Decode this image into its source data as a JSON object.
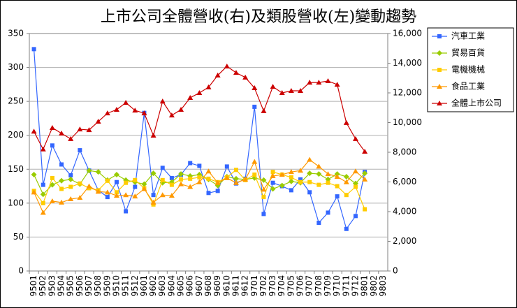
{
  "chart_data": {
    "type": "line",
    "title": "上市公司全體營收(右)及類股營收(左)變動趨勢",
    "categories": [
      "9501",
      "9502",
      "9503",
      "9504",
      "9505",
      "9506",
      "9507",
      "9508",
      "9509",
      "9510",
      "9511",
      "9512",
      "9601",
      "9602",
      "9603",
      "9604",
      "9605",
      "9606",
      "9607",
      "9608",
      "9609",
      "9610",
      "9611",
      "9612",
      "9701",
      "9702",
      "9703",
      "9704",
      "9705",
      "9706",
      "9707",
      "9708",
      "9709",
      "9710",
      "9711",
      "9712",
      "9801",
      "9802",
      "9803"
    ],
    "series": [
      {
        "name": "汽車工業",
        "color": "#3366ff",
        "marker": "square",
        "values": [
          327,
          127,
          185,
          157,
          141,
          178,
          148,
          119,
          109,
          131,
          88,
          124,
          233,
          112,
          152,
          137,
          142,
          159,
          155,
          115,
          118,
          154,
          129,
          136,
          242,
          84,
          130,
          125,
          119,
          135,
          116,
          71,
          86,
          110,
          62,
          81,
          146,
          null,
          null
        ]
      },
      {
        "name": "貿易百貨",
        "color": "#99cc00",
        "marker": "diamond",
        "values": [
          142,
          113,
          127,
          133,
          135,
          128,
          148,
          146,
          134,
          142,
          134,
          131,
          128,
          144,
          130,
          131,
          143,
          140,
          142,
          135,
          126,
          139,
          136,
          135,
          137,
          134,
          121,
          126,
          132,
          130,
          144,
          143,
          135,
          143,
          139,
          129,
          144,
          null,
          null
        ]
      },
      {
        "name": "電機機械",
        "color": "#ffcc00",
        "marker": "square",
        "values": [
          118,
          100,
          137,
          121,
          124,
          129,
          122,
          119,
          133,
          116,
          130,
          134,
          122,
          98,
          134,
          127,
          135,
          136,
          138,
          136,
          131,
          138,
          149,
          134,
          142,
          109,
          146,
          142,
          138,
          131,
          131,
          127,
          130,
          125,
          112,
          124,
          91,
          null,
          null
        ]
      },
      {
        "name": "食品工業",
        "color": "#ff9900",
        "marker": "triangle",
        "values": [
          116,
          86,
          103,
          101,
          106,
          108,
          125,
          117,
          116,
          111,
          112,
          110,
          121,
          101,
          112,
          111,
          128,
          124,
          131,
          147,
          130,
          137,
          130,
          135,
          161,
          120,
          140,
          142,
          146,
          148,
          164,
          154,
          143,
          139,
          131,
          147,
          135,
          null,
          null
        ]
      },
      {
        "name": "全體上市公司",
        "color": "#cc0000",
        "marker": "triangle",
        "axis": "y2",
        "values": [
          9400,
          8200,
          9650,
          9270,
          8900,
          9550,
          9500,
          10070,
          10630,
          10870,
          11340,
          10820,
          10630,
          9130,
          11430,
          10490,
          10870,
          11670,
          12000,
          12380,
          13180,
          13790,
          13360,
          13040,
          12330,
          10780,
          12420,
          12000,
          12140,
          12140,
          12700,
          12700,
          12800,
          12560,
          9980,
          8900,
          8050,
          null,
          null
        ]
      }
    ],
    "ylim": [
      0,
      350
    ],
    "yticks": [
      0,
      50,
      100,
      150,
      200,
      250,
      300,
      350
    ],
    "y2lim": [
      0,
      16000
    ],
    "y2ticks": [
      0,
      {
        "value": 2000,
        "label": "2,000"
      },
      {
        "value": 4000,
        "label": "4,000"
      },
      {
        "value": 6000,
        "label": "6,000"
      },
      {
        "value": 8000,
        "label": "8,000"
      },
      {
        "value": 10000,
        "label": "10,000"
      },
      {
        "value": 12000,
        "label": "12,000"
      },
      {
        "value": 14000,
        "label": "14,000"
      },
      {
        "value": 16000,
        "label": "16,000"
      }
    ],
    "grid": true,
    "legend": "right"
  }
}
